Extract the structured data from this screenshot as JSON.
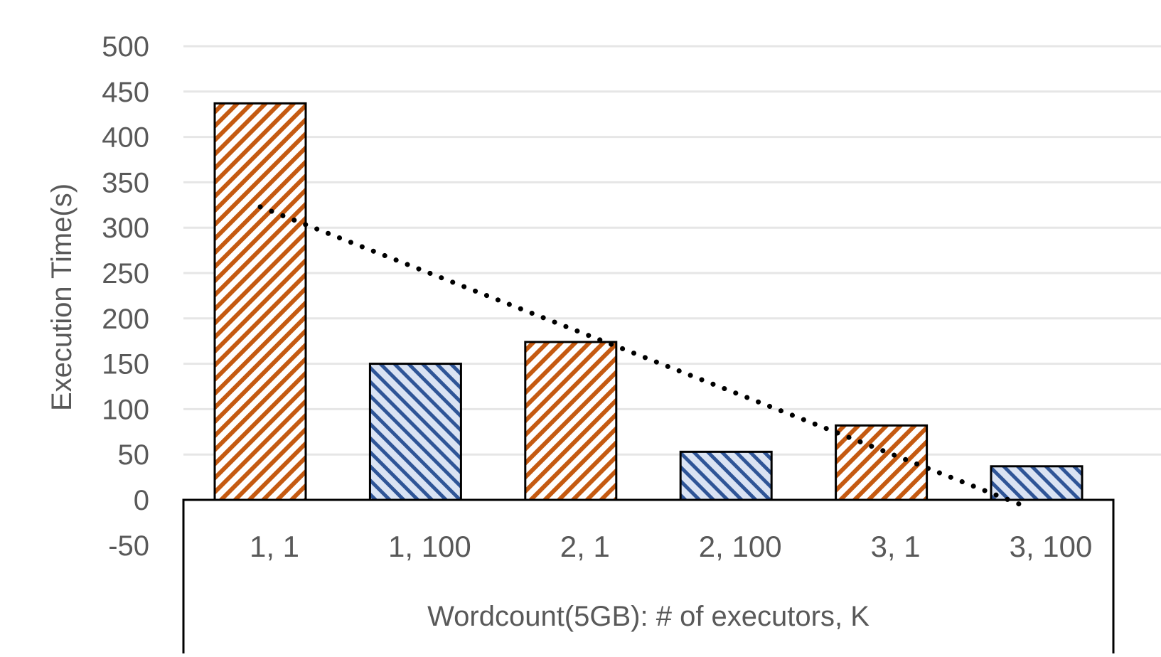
{
  "chart_data": {
    "type": "bar",
    "title": "",
    "xlabel": "Wordcount(5GB): # of executors, K",
    "ylabel": "Execution Time(s)",
    "ylim": [
      -50,
      500
    ],
    "yticks": [
      500,
      450,
      400,
      350,
      300,
      250,
      200,
      150,
      100,
      50,
      0,
      -50
    ],
    "grid": true,
    "categories": [
      "1, 1",
      "1, 100",
      "2, 1",
      "2, 100",
      "3, 1",
      "3, 100"
    ],
    "values": [
      437,
      150,
      174,
      53,
      82,
      37
    ],
    "bar_groups": [
      "K=1",
      "K=100",
      "K=1",
      "K=100",
      "K=1",
      "K=100"
    ],
    "trendline": {
      "style": "dotted",
      "type": "linear",
      "from_x": "1, 1",
      "to_x": "3, 100",
      "from_y": 323,
      "to_y": -6
    },
    "colors": {
      "k1_stripe": "#c55a11",
      "k100_stripe": "#2f5597",
      "k100_fill": "#dae3f3",
      "grid": "#e6e6e6",
      "text": "#595959"
    }
  }
}
